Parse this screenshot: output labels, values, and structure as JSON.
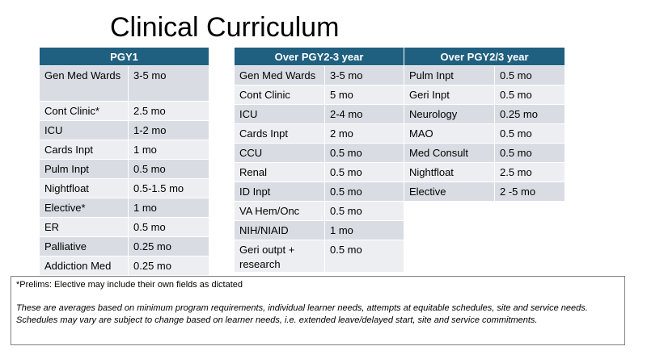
{
  "title": "Clinical Curriculum",
  "tables": [
    {
      "header": "PGY1",
      "rows": [
        [
          "Gen Med Wards",
          "3-5 mo"
        ],
        [
          "Cont Clinic*",
          "2.5 mo"
        ],
        [
          "ICU",
          "1-2 mo"
        ],
        [
          "Cards Inpt",
          "1 mo"
        ],
        [
          "Pulm Inpt",
          "0.5 mo"
        ],
        [
          "Nightfloat",
          "0.5-1.5 mo"
        ],
        [
          "Elective*",
          "1 mo"
        ],
        [
          "ER",
          "0.5 mo"
        ],
        [
          "Palliative",
          "0.25 mo"
        ],
        [
          "Addiction Med",
          "0.25 mo"
        ]
      ]
    },
    {
      "header": "Over PGY2-3 year",
      "rows": [
        [
          "Gen Med Wards",
          "3-5 mo"
        ],
        [
          "Cont Clinic",
          "5 mo"
        ],
        [
          "ICU",
          "2-4 mo"
        ],
        [
          "Cards Inpt",
          "2 mo"
        ],
        [
          "CCU",
          "0.5 mo"
        ],
        [
          "Renal",
          "0.5 mo"
        ],
        [
          "ID Inpt",
          "0.5 mo"
        ],
        [
          "VA Hem/Onc",
          "0.5 mo"
        ],
        [
          "NIH/NIAID",
          "1 mo"
        ],
        [
          "Geri outpt + research",
          "0.5 mo"
        ]
      ]
    },
    {
      "header": "Over PGY2/3 year",
      "rows": [
        [
          "Pulm Inpt",
          "0.5 mo"
        ],
        [
          "Geri Inpt",
          "0.5 mo"
        ],
        [
          "Neurology",
          "0.25 mo"
        ],
        [
          "MAO",
          "0.5 mo"
        ],
        [
          "Med Consult",
          "0.5 mo"
        ],
        [
          "Nightfloat",
          "2.5 mo"
        ],
        [
          "Elective",
          "2 -5 mo"
        ]
      ]
    }
  ],
  "note": {
    "line1": "*Prelims: Elective may include their own fields as dictated",
    "line2": "These are averages based on minimum program requirements, individual learner needs, attempts at equitable schedules, site and service needs.",
    "line3": "Schedules may vary are subject to change based on learner needs, i.e. extended leave/delayed start, site and service commitments."
  }
}
